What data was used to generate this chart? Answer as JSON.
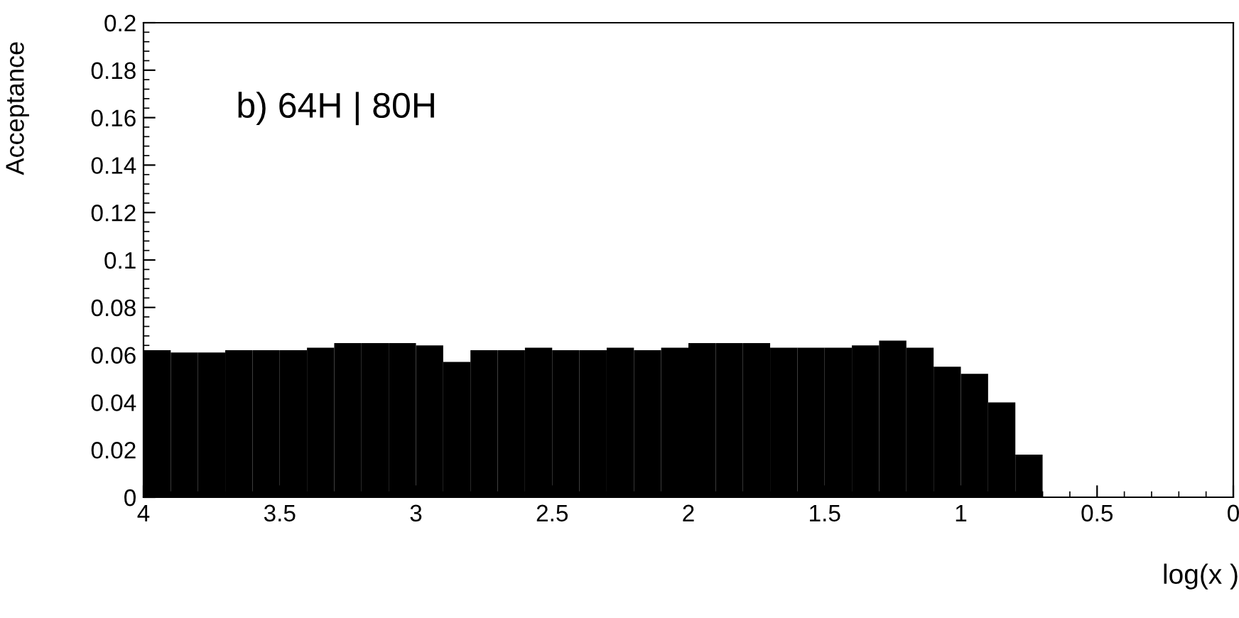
{
  "chart_data": {
    "type": "histogram",
    "ylabel": "Acceptance",
    "xlabel": "log(x )",
    "annotations": [
      "b) 64H | 80H"
    ],
    "bins": [
      4.0,
      3.9,
      3.8,
      3.7,
      3.6,
      3.5,
      3.4,
      3.3,
      3.2,
      3.1,
      3.0,
      2.9,
      2.8,
      2.7,
      2.6,
      2.5,
      2.4,
      2.3,
      2.2,
      2.1,
      2.0,
      1.9,
      1.8,
      1.7,
      1.6,
      1.5,
      1.4,
      1.3,
      1.2,
      1.1,
      1.0,
      0.9,
      0.8,
      0.7
    ],
    "values": [
      0.062,
      0.061,
      0.061,
      0.062,
      0.062,
      0.062,
      0.063,
      0.065,
      0.065,
      0.065,
      0.064,
      0.057,
      0.062,
      0.062,
      0.063,
      0.062,
      0.062,
      0.063,
      0.062,
      0.063,
      0.065,
      0.065,
      0.065,
      0.063,
      0.063,
      0.063,
      0.064,
      0.066,
      0.063,
      0.055,
      0.052,
      0.04,
      0.018
    ],
    "color": "#000000",
    "xlim": [
      4,
      0
    ],
    "xticks": [
      4,
      3.5,
      3,
      2.5,
      2,
      1.5,
      1,
      0.5,
      0
    ],
    "ylim": [
      0,
      0.2
    ],
    "yticks": [
      0,
      0.02,
      0.04,
      0.06,
      0.08,
      0.1,
      0.12,
      0.14,
      0.16,
      0.18,
      0.2
    ],
    "grid": false,
    "legend": false
  }
}
